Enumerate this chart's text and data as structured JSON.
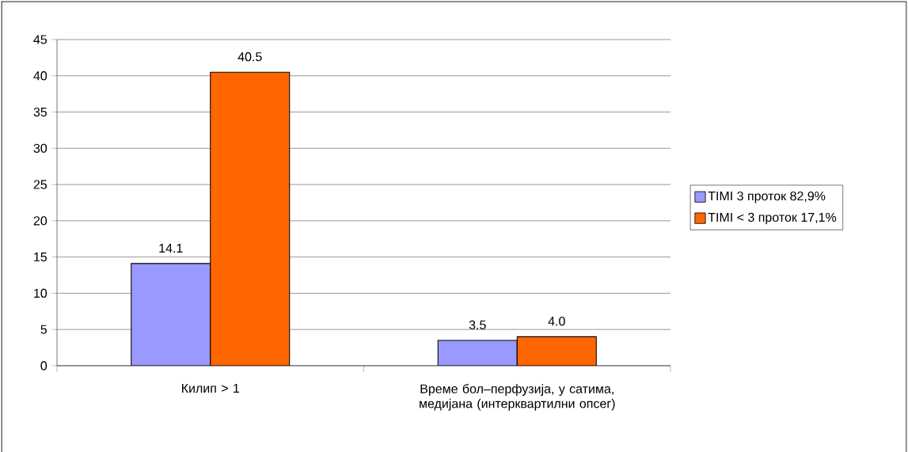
{
  "chart_data": {
    "type": "bar",
    "categories": [
      "Килип > 1",
      "Време бол–перфузија, у сатима, медијана (интерквартилни опсег)"
    ],
    "series": [
      {
        "name": "TIMI 3 проток 82,9%",
        "color": "#9999ff",
        "values": [
          14.1,
          3.5
        ],
        "value_labels": [
          "14.1",
          "3.5"
        ]
      },
      {
        "name": "TIMI < 3 проток 17,1%",
        "color": "#ff6600",
        "values": [
          40.5,
          4.0
        ],
        "value_labels": [
          "40.5",
          "4.0"
        ]
      }
    ],
    "ylim": [
      0,
      45
    ],
    "yticks": [
      0,
      5,
      10,
      15,
      20,
      25,
      30,
      35,
      40,
      45
    ],
    "grid": "y",
    "legend": "right"
  }
}
